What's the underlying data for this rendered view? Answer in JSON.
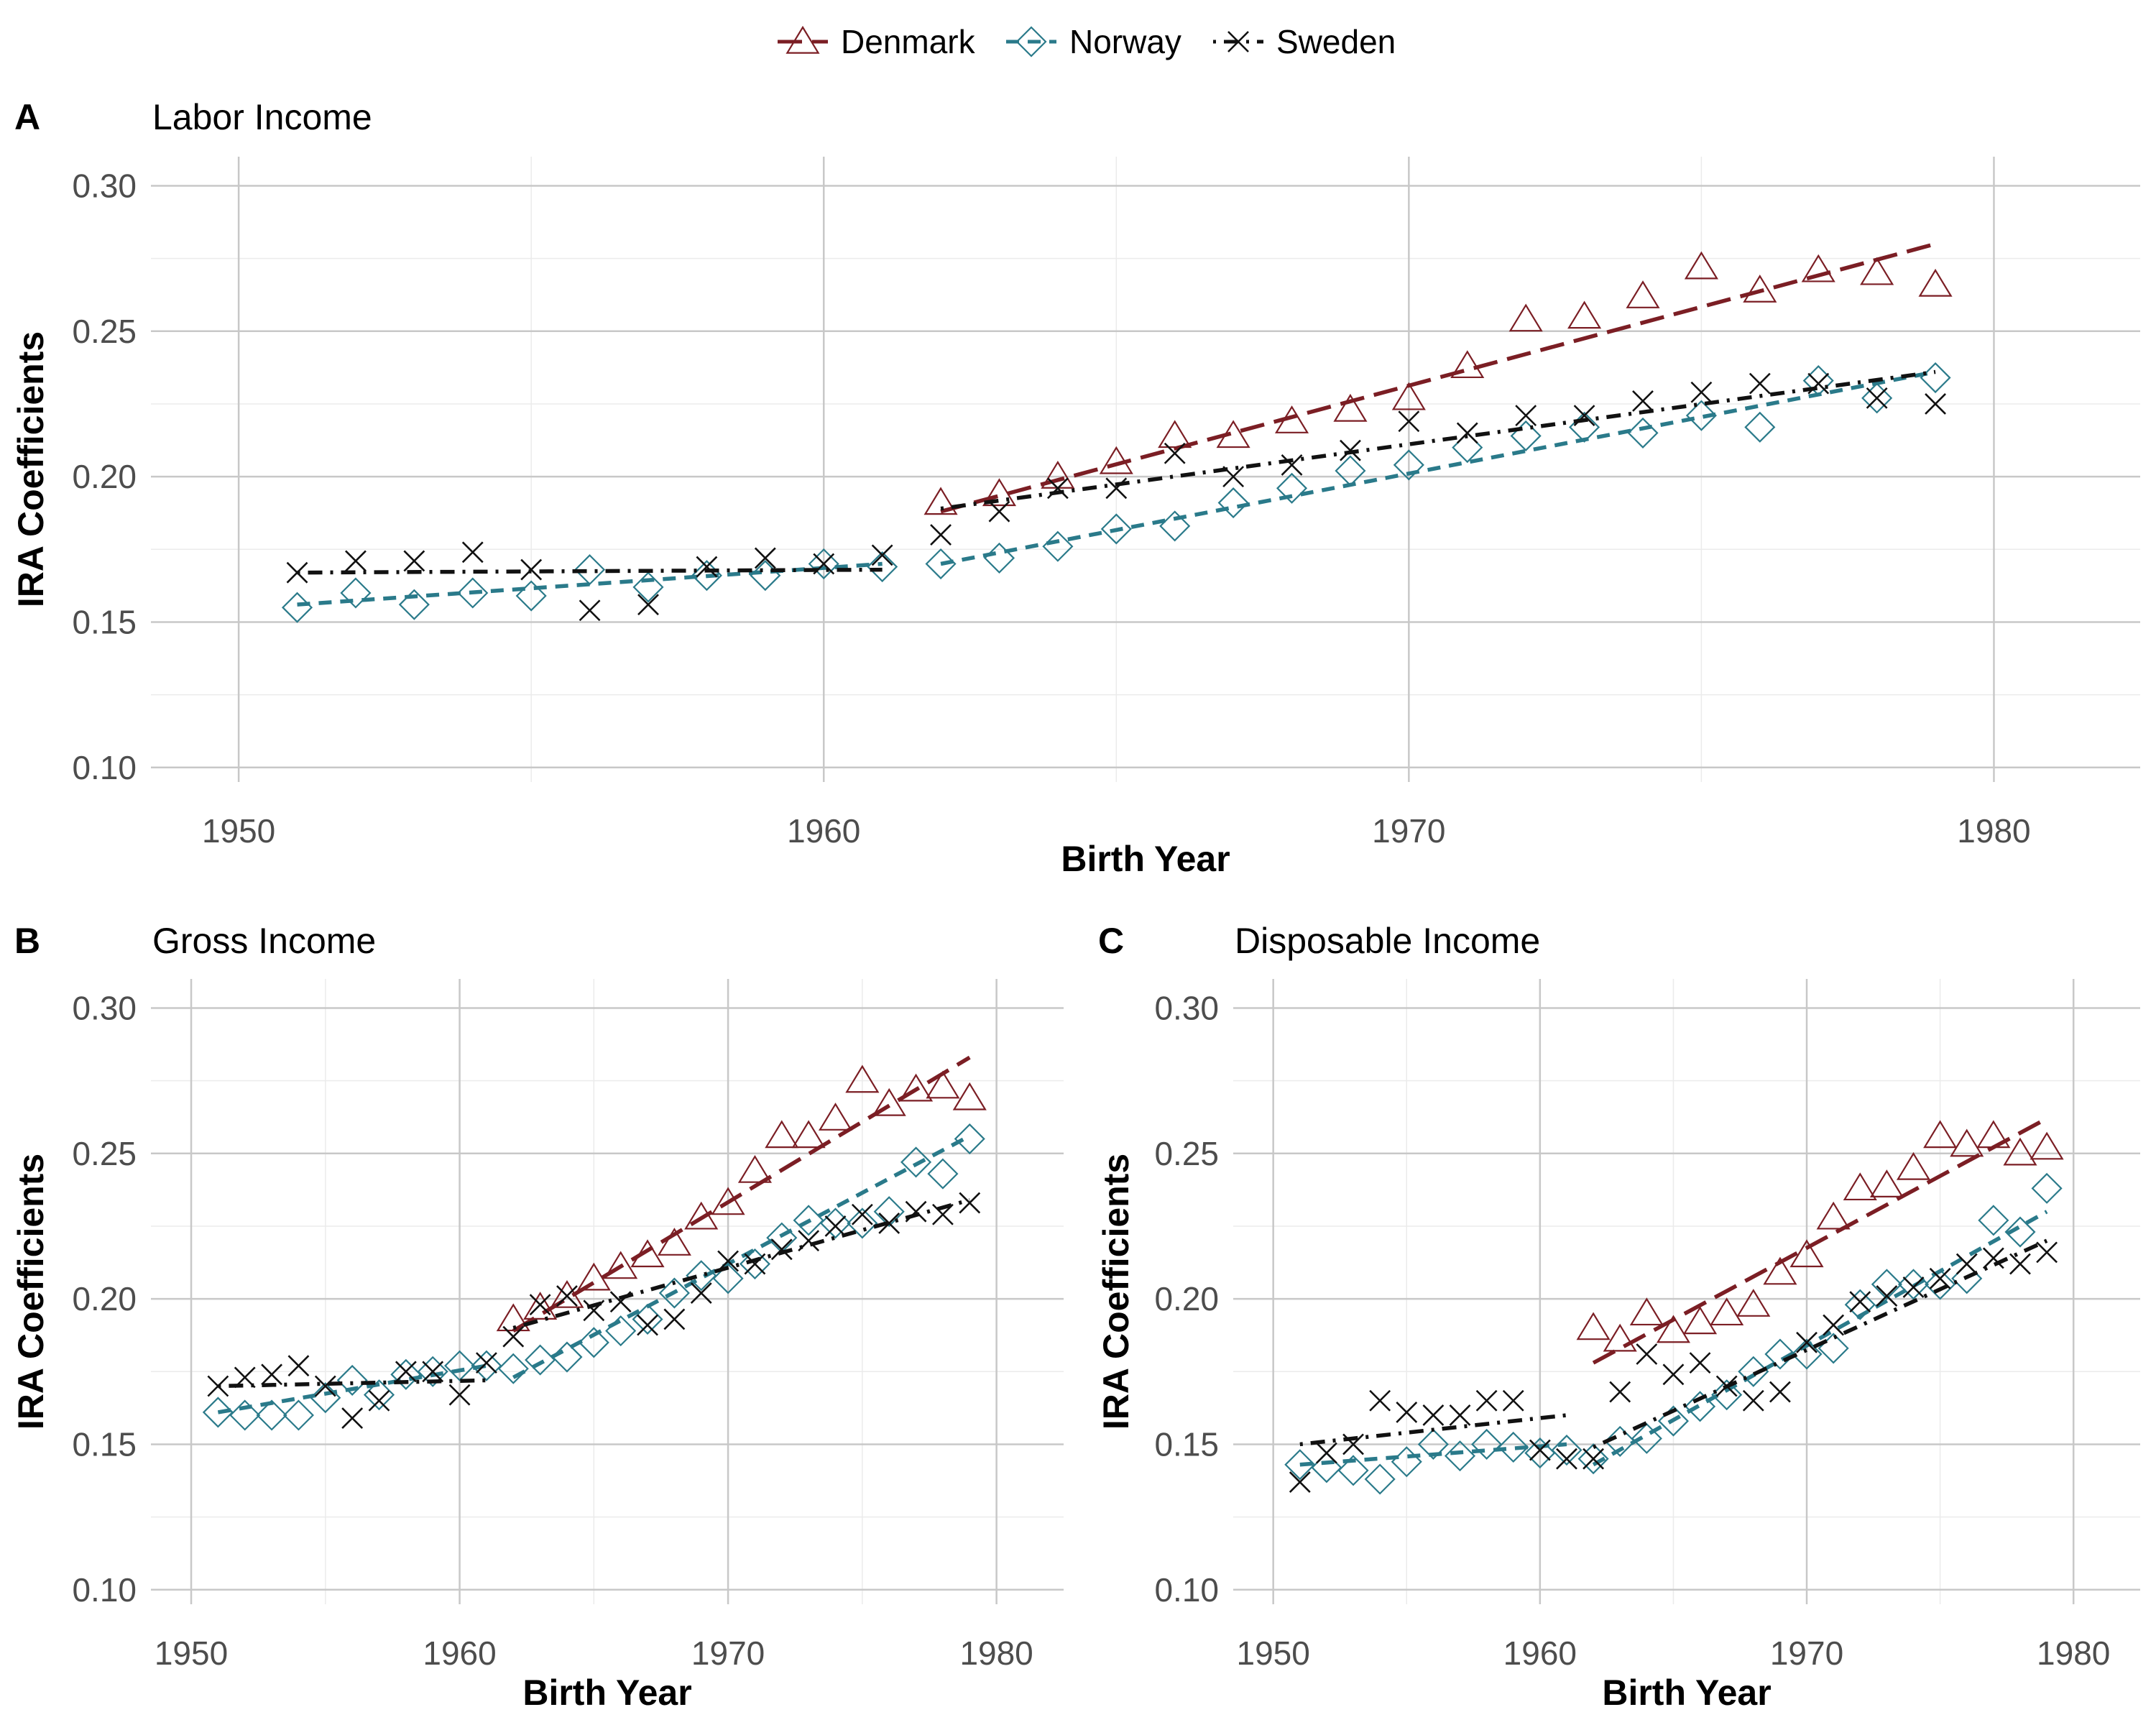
{
  "legend": [
    {
      "key": "denmark",
      "label": "Denmark",
      "color": "#7B1E24",
      "marker": "triangle-icon",
      "line": "long-dash"
    },
    {
      "key": "norway",
      "label": "Norway",
      "color": "#2A7A8A",
      "marker": "diamond-icon",
      "line": "dash"
    },
    {
      "key": "sweden",
      "label": "Sweden",
      "color": "#111111",
      "marker": "cross-icon",
      "line": "dot-dash"
    }
  ],
  "chart_data": [
    {
      "tag": "A",
      "title": "Labor Income",
      "type": "scatter",
      "xlabel": "Birth Year",
      "ylabel": "IRA Coefficients",
      "xlim": [
        1948.5,
        1982.5
      ],
      "ylim": [
        0.095,
        0.31
      ],
      "xticks": [
        1950,
        1960,
        1970,
        1980
      ],
      "yticks": [
        0.1,
        0.15,
        0.2,
        0.25,
        0.3
      ],
      "xtick_labels": [
        "1950",
        "1960",
        "1970",
        "1980"
      ],
      "ytick_labels": [
        "0.10",
        "0.15",
        "0.20",
        "0.25",
        "0.30"
      ],
      "series": [
        {
          "name": "Denmark",
          "x": [
            1962,
            1963,
            1964,
            1965,
            1966,
            1967,
            1968,
            1969,
            1970,
            1971,
            1972,
            1973,
            1974,
            1975,
            1976,
            1977,
            1978,
            1979
          ],
          "y": [
            0.191,
            0.194,
            0.2,
            0.205,
            0.214,
            0.214,
            0.219,
            0.223,
            0.227,
            0.238,
            0.254,
            0.255,
            0.262,
            0.272,
            0.264,
            0.271,
            0.27,
            0.266
          ],
          "fits": [
            {
              "x": [
                1962,
                1979
              ],
              "y": [
                0.188,
                0.28
              ]
            }
          ]
        },
        {
          "name": "Norway",
          "x": [
            1951,
            1952,
            1953,
            1954,
            1955,
            1956,
            1957,
            1958,
            1959,
            1960,
            1961,
            1962,
            1963,
            1964,
            1965,
            1966,
            1967,
            1968,
            1969,
            1970,
            1971,
            1972,
            1973,
            1974,
            1975,
            1976,
            1977,
            1978,
            1979
          ],
          "y": [
            0.155,
            0.16,
            0.156,
            0.16,
            0.159,
            0.168,
            0.162,
            0.166,
            0.166,
            0.17,
            0.169,
            0.17,
            0.172,
            0.176,
            0.182,
            0.183,
            0.191,
            0.196,
            0.202,
            0.204,
            0.21,
            0.214,
            0.217,
            0.215,
            0.221,
            0.217,
            0.233,
            0.227,
            0.234
          ],
          "fits": [
            {
              "x": [
                1951,
                1961
              ],
              "y": [
                0.156,
                0.17
              ]
            },
            {
              "x": [
                1962,
                1979
              ],
              "y": [
                0.17,
                0.236
              ]
            }
          ]
        },
        {
          "name": "Sweden",
          "x": [
            1951,
            1952,
            1953,
            1954,
            1955,
            1956,
            1957,
            1958,
            1959,
            1960,
            1961,
            1962,
            1963,
            1964,
            1965,
            1966,
            1967,
            1968,
            1969,
            1970,
            1971,
            1972,
            1973,
            1974,
            1975,
            1976,
            1977,
            1978,
            1979
          ],
          "y": [
            0.167,
            0.171,
            0.171,
            0.174,
            0.168,
            0.154,
            0.156,
            0.169,
            0.172,
            0.17,
            0.173,
            0.18,
            0.188,
            0.196,
            0.196,
            0.208,
            0.2,
            0.204,
            0.209,
            0.219,
            0.215,
            0.221,
            0.221,
            0.226,
            0.229,
            0.232,
            0.232,
            0.227,
            0.225
          ],
          "fits": [
            {
              "x": [
                1951,
                1961
              ],
              "y": [
                0.167,
                0.168
              ]
            },
            {
              "x": [
                1962,
                1979
              ],
              "y": [
                0.189,
                0.236
              ]
            }
          ]
        }
      ]
    },
    {
      "tag": "B",
      "title": "Gross Income",
      "type": "scatter",
      "xlabel": "Birth Year",
      "ylabel": "IRA Coefficients",
      "xlim": [
        1948.5,
        1982.5
      ],
      "ylim": [
        0.095,
        0.31
      ],
      "xticks": [
        1950,
        1960,
        1970,
        1980
      ],
      "yticks": [
        0.1,
        0.15,
        0.2,
        0.25,
        0.3
      ],
      "xtick_labels": [
        "1950",
        "1960",
        "1970",
        "1980"
      ],
      "ytick_labels": [
        "0.10",
        "0.15",
        "0.20",
        "0.25",
        "0.30"
      ],
      "series": [
        {
          "name": "Denmark",
          "x": [
            1962,
            1963,
            1964,
            1965,
            1966,
            1967,
            1968,
            1969,
            1970,
            1971,
            1972,
            1973,
            1974,
            1975,
            1976,
            1977,
            1978,
            1979
          ],
          "y": [
            0.193,
            0.197,
            0.201,
            0.207,
            0.211,
            0.215,
            0.219,
            0.228,
            0.233,
            0.244,
            0.256,
            0.256,
            0.262,
            0.275,
            0.267,
            0.272,
            0.273,
            0.269
          ],
          "fits": [
            {
              "x": [
                1962,
                1979
              ],
              "y": [
                0.189,
                0.283
              ]
            }
          ]
        },
        {
          "name": "Norway",
          "x": [
            1951,
            1952,
            1953,
            1954,
            1955,
            1956,
            1957,
            1958,
            1959,
            1960,
            1961,
            1962,
            1963,
            1964,
            1965,
            1966,
            1967,
            1968,
            1969,
            1970,
            1971,
            1972,
            1973,
            1974,
            1975,
            1976,
            1977,
            1978,
            1979
          ],
          "y": [
            0.161,
            0.16,
            0.16,
            0.16,
            0.166,
            0.172,
            0.167,
            0.174,
            0.175,
            0.177,
            0.177,
            0.176,
            0.179,
            0.18,
            0.185,
            0.189,
            0.193,
            0.202,
            0.208,
            0.207,
            0.212,
            0.221,
            0.227,
            0.226,
            0.226,
            0.23,
            0.247,
            0.243,
            0.255
          ],
          "fits": [
            {
              "x": [
                1951,
                1961
              ],
              "y": [
                0.161,
                0.177
              ]
            },
            {
              "x": [
                1962,
                1979
              ],
              "y": [
                0.173,
                0.256
              ]
            }
          ]
        },
        {
          "name": "Sweden",
          "x": [
            1951,
            1952,
            1953,
            1954,
            1955,
            1956,
            1957,
            1958,
            1959,
            1960,
            1961,
            1962,
            1963,
            1964,
            1965,
            1966,
            1967,
            1968,
            1969,
            1970,
            1971,
            1972,
            1973,
            1974,
            1975,
            1976,
            1977,
            1978,
            1979
          ],
          "y": [
            0.17,
            0.173,
            0.174,
            0.177,
            0.17,
            0.159,
            0.165,
            0.175,
            0.175,
            0.167,
            0.178,
            0.187,
            0.198,
            0.201,
            0.196,
            0.199,
            0.191,
            0.193,
            0.202,
            0.213,
            0.212,
            0.217,
            0.22,
            0.225,
            0.229,
            0.226,
            0.23,
            0.229,
            0.233
          ],
          "fits": [
            {
              "x": [
                1951,
                1961
              ],
              "y": [
                0.17,
                0.172
              ]
            },
            {
              "x": [
                1962,
                1979
              ],
              "y": [
                0.19,
                0.234
              ]
            }
          ]
        }
      ]
    },
    {
      "tag": "C",
      "title": "Disposable Income",
      "type": "scatter",
      "xlabel": "Birth Year",
      "ylabel": "IRA Coefficients",
      "xlim": [
        1948.5,
        1982.5
      ],
      "ylim": [
        0.095,
        0.31
      ],
      "xticks": [
        1950,
        1960,
        1970,
        1980
      ],
      "yticks": [
        0.1,
        0.15,
        0.2,
        0.25,
        0.3
      ],
      "xtick_labels": [
        "1950",
        "1960",
        "1970",
        "1980"
      ],
      "ytick_labels": [
        "0.10",
        "0.15",
        "0.20",
        "0.25",
        "0.30"
      ],
      "series": [
        {
          "name": "Denmark",
          "x": [
            1962,
            1963,
            1964,
            1965,
            1966,
            1967,
            1968,
            1969,
            1970,
            1971,
            1972,
            1973,
            1974,
            1975,
            1976,
            1977,
            1978,
            1979
          ],
          "y": [
            0.19,
            0.186,
            0.195,
            0.189,
            0.192,
            0.195,
            0.198,
            0.209,
            0.215,
            0.228,
            0.238,
            0.239,
            0.245,
            0.256,
            0.253,
            0.256,
            0.25,
            0.252
          ],
          "fits": [
            {
              "x": [
                1962,
                1979
              ],
              "y": [
                0.178,
                0.262
              ]
            }
          ]
        },
        {
          "name": "Norway",
          "x": [
            1951,
            1952,
            1953,
            1954,
            1955,
            1956,
            1957,
            1958,
            1959,
            1960,
            1961,
            1962,
            1963,
            1964,
            1965,
            1966,
            1967,
            1968,
            1969,
            1970,
            1971,
            1972,
            1973,
            1974,
            1975,
            1976,
            1977,
            1978,
            1979
          ],
          "y": [
            0.143,
            0.142,
            0.141,
            0.138,
            0.144,
            0.15,
            0.146,
            0.15,
            0.149,
            0.147,
            0.148,
            0.145,
            0.151,
            0.152,
            0.158,
            0.163,
            0.167,
            0.175,
            0.181,
            0.181,
            0.183,
            0.198,
            0.205,
            0.205,
            0.205,
            0.207,
            0.227,
            0.223,
            0.238
          ],
          "fits": [
            {
              "x": [
                1951,
                1961
              ],
              "y": [
                0.143,
                0.15
              ]
            },
            {
              "x": [
                1962,
                1979
              ],
              "y": [
                0.143,
                0.23
              ]
            }
          ]
        },
        {
          "name": "Sweden",
          "x": [
            1951,
            1952,
            1953,
            1954,
            1955,
            1956,
            1957,
            1958,
            1959,
            1960,
            1961,
            1962,
            1963,
            1964,
            1965,
            1966,
            1967,
            1968,
            1969,
            1970,
            1971,
            1972,
            1973,
            1974,
            1975,
            1976,
            1977,
            1978,
            1979
          ],
          "y": [
            0.137,
            0.147,
            0.15,
            0.165,
            0.161,
            0.16,
            0.16,
            0.165,
            0.165,
            0.148,
            0.145,
            0.145,
            0.168,
            0.181,
            0.174,
            0.178,
            0.17,
            0.165,
            0.168,
            0.185,
            0.191,
            0.199,
            0.201,
            0.204,
            0.207,
            0.212,
            0.214,
            0.212,
            0.216
          ],
          "fits": [
            {
              "x": [
                1951,
                1961
              ],
              "y": [
                0.15,
                0.16
              ]
            },
            {
              "x": [
                1962,
                1979
              ],
              "y": [
                0.149,
                0.22
              ]
            }
          ]
        }
      ]
    }
  ]
}
